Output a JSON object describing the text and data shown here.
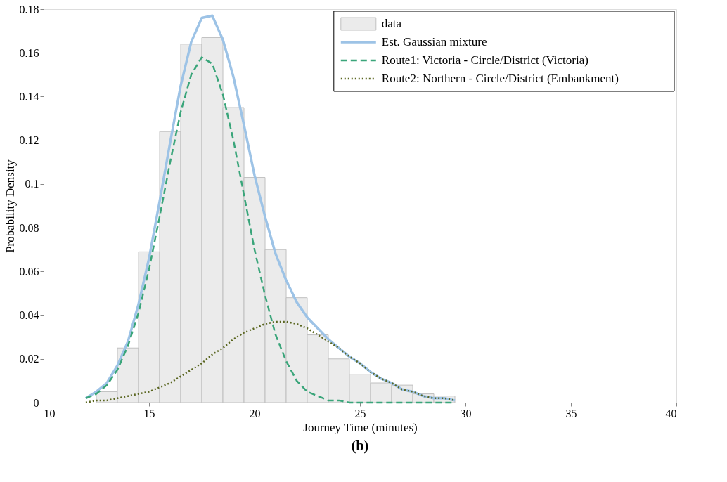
{
  "chart_data": {
    "type": "histogram",
    "xlabel": "Journey Time (minutes)",
    "ylabel": "Probability Density",
    "annotations": [
      "(b)"
    ],
    "xlim": [
      10,
      40
    ],
    "xticks": [
      10,
      15,
      20,
      25,
      30,
      35,
      40
    ],
    "ylim": [
      0,
      0.18
    ],
    "yticks": [
      0,
      0.02,
      0.04,
      0.06,
      0.08,
      0.1,
      0.12,
      0.14,
      0.16,
      0.18
    ],
    "grid": false,
    "legend": "top right",
    "series": [
      {
        "name": "data",
        "color": "#ebebeb",
        "bins": [
          12.5,
          13.5,
          14.5,
          15.5,
          16.5,
          17.5,
          18.5,
          19.5,
          20.5,
          21.5,
          22.5,
          23.5,
          24.5,
          25.5,
          26.5,
          27.5,
          28.5,
          29.5
        ],
        "values": [
          0.005,
          0.025,
          0.069,
          0.124,
          0.164,
          0.167,
          0.135,
          0.103,
          0.07,
          0.048,
          0.031,
          0.02,
          0.013,
          0.009,
          0.008,
          0.004,
          0.003
        ]
      },
      {
        "name": "Est. Gaussian mixture",
        "type": "line",
        "color": "#9dc3e6",
        "line_style": "solid",
        "x": [
          12,
          12.5,
          13,
          13.5,
          14,
          14.5,
          15,
          15.5,
          16,
          16.5,
          17,
          17.5,
          18,
          18.5,
          19,
          19.5,
          20,
          20.5,
          21,
          21.5,
          22,
          22.5,
          23,
          23.5,
          24,
          24.5,
          25,
          25.5,
          26,
          26.5,
          27,
          27.5,
          28,
          28.5,
          29,
          29.5
        ],
        "values": [
          0.002,
          0.005,
          0.009,
          0.017,
          0.028,
          0.045,
          0.066,
          0.092,
          0.119,
          0.145,
          0.165,
          0.176,
          0.177,
          0.166,
          0.149,
          0.127,
          0.104,
          0.085,
          0.068,
          0.056,
          0.046,
          0.039,
          0.034,
          0.029,
          0.025,
          0.021,
          0.018,
          0.014,
          0.011,
          0.009,
          0.006,
          0.005,
          0.003,
          0.002,
          0.002,
          0.001
        ]
      },
      {
        "name": "Route1: Victoria - Circle/District (Victoria)",
        "type": "line",
        "color": "#3aa57a",
        "line_style": "dashed",
        "x": [
          12,
          12.5,
          13,
          13.5,
          14,
          14.5,
          15,
          15.5,
          16,
          16.5,
          17,
          17.5,
          18,
          18.5,
          19,
          19.5,
          20,
          20.5,
          21,
          21.5,
          22,
          22.5,
          23,
          23.5,
          24,
          24.5,
          25,
          25.5,
          26,
          26.5,
          27,
          27.5,
          28,
          28.5,
          29,
          29.5
        ],
        "values": [
          0.002,
          0.004,
          0.008,
          0.015,
          0.026,
          0.041,
          0.061,
          0.085,
          0.11,
          0.133,
          0.15,
          0.158,
          0.155,
          0.141,
          0.12,
          0.095,
          0.07,
          0.049,
          0.031,
          0.019,
          0.01,
          0.005,
          0.003,
          0.001,
          0.001,
          0,
          0,
          0,
          0,
          0,
          0,
          0,
          0,
          0,
          0,
          0
        ]
      },
      {
        "name": "Route2: Northern - Circle/District (Embankment)",
        "type": "line",
        "color": "#5a6620",
        "line_style": "dotted",
        "x": [
          12,
          12.5,
          13,
          13.5,
          14,
          14.5,
          15,
          15.5,
          16,
          16.5,
          17,
          17.5,
          18,
          18.5,
          19,
          19.5,
          20,
          20.5,
          21,
          21.5,
          22,
          22.5,
          23,
          23.5,
          24,
          24.5,
          25,
          25.5,
          26,
          26.5,
          27,
          27.5,
          28,
          28.5,
          29,
          29.5
        ],
        "values": [
          0,
          0.001,
          0.001,
          0.002,
          0.003,
          0.004,
          0.005,
          0.007,
          0.009,
          0.012,
          0.015,
          0.018,
          0.022,
          0.025,
          0.029,
          0.032,
          0.034,
          0.036,
          0.037,
          0.037,
          0.036,
          0.034,
          0.031,
          0.028,
          0.025,
          0.021,
          0.018,
          0.014,
          0.011,
          0.009,
          0.006,
          0.005,
          0.003,
          0.002,
          0.002,
          0.001
        ]
      }
    ]
  }
}
